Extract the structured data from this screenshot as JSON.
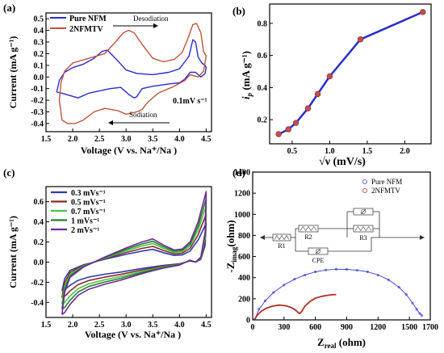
{
  "panels": {
    "a": {
      "letter": "(a)",
      "xlabel": "Voltage (V vs. Na⁺/Na )",
      "ylabel": "Current (mA g⁻¹)",
      "xlim": [
        1.5,
        4.6
      ],
      "ylim": [
        -0.47,
        0.55
      ],
      "xticks": [
        1.5,
        2.0,
        2.5,
        3.0,
        3.5,
        4.0,
        4.5
      ],
      "yticks": [
        -0.4,
        -0.3,
        -0.2,
        -0.1,
        0.0,
        0.1,
        0.2,
        0.3,
        0.4,
        0.5
      ],
      "annotations": {
        "desodiation": "Desodiation",
        "sodiation": "Sodiation",
        "rate": "0.1mV s⁻¹"
      },
      "series": [
        {
          "name": "Pure NFM",
          "color": "#2b2bd0",
          "points": [
            [
              1.7,
              -0.13
            ],
            [
              1.75,
              -0.03
            ],
            [
              1.85,
              0.04
            ],
            [
              2.0,
              0.08
            ],
            [
              2.2,
              0.11
            ],
            [
              2.4,
              0.16
            ],
            [
              2.55,
              0.22
            ],
            [
              2.65,
              0.23
            ],
            [
              2.8,
              0.16
            ],
            [
              3.0,
              0.06
            ],
            [
              3.2,
              0.03
            ],
            [
              3.5,
              0.02
            ],
            [
              3.8,
              0.04
            ],
            [
              4.0,
              0.07
            ],
            [
              4.1,
              0.13
            ],
            [
              4.18,
              0.18
            ],
            [
              4.25,
              0.32
            ],
            [
              4.3,
              0.3
            ],
            [
              4.35,
              0.17
            ],
            [
              4.42,
              0.12
            ],
            [
              4.48,
              0.1
            ],
            [
              4.5,
              0.08
            ],
            [
              4.48,
              0.03
            ],
            [
              4.4,
              0.0
            ],
            [
              4.3,
              0.04
            ],
            [
              4.2,
              0.04
            ],
            [
              4.1,
              -0.02
            ],
            [
              4.0,
              -0.05
            ],
            [
              3.8,
              -0.06
            ],
            [
              3.5,
              -0.08
            ],
            [
              3.3,
              -0.1
            ],
            [
              3.2,
              -0.17
            ],
            [
              3.15,
              -0.18
            ],
            [
              3.05,
              -0.15
            ],
            [
              2.9,
              -0.09
            ],
            [
              2.7,
              -0.1
            ],
            [
              2.5,
              -0.12
            ],
            [
              2.3,
              -0.14
            ],
            [
              2.1,
              -0.18
            ],
            [
              1.95,
              -0.16
            ],
            [
              1.8,
              -0.14
            ],
            [
              1.7,
              -0.13
            ]
          ]
        },
        {
          "name": "2NFMTV",
          "color": "#c0533a",
          "points": [
            [
              1.8,
              -0.37
            ],
            [
              1.75,
              -0.2
            ],
            [
              1.78,
              -0.05
            ],
            [
              1.85,
              0.05
            ],
            [
              2.0,
              0.12
            ],
            [
              2.3,
              0.16
            ],
            [
              2.6,
              0.2
            ],
            [
              2.8,
              0.3
            ],
            [
              2.95,
              0.38
            ],
            [
              3.05,
              0.4
            ],
            [
              3.15,
              0.38
            ],
            [
              3.3,
              0.28
            ],
            [
              3.5,
              0.16
            ],
            [
              3.7,
              0.13
            ],
            [
              3.9,
              0.15
            ],
            [
              4.05,
              0.21
            ],
            [
              4.15,
              0.32
            ],
            [
              4.25,
              0.45
            ],
            [
              4.32,
              0.46
            ],
            [
              4.4,
              0.38
            ],
            [
              4.45,
              0.22
            ],
            [
              4.5,
              0.18
            ],
            [
              4.45,
              0.05
            ],
            [
              4.35,
              0.0
            ],
            [
              4.2,
              0.02
            ],
            [
              4.1,
              -0.03
            ],
            [
              3.9,
              -0.08
            ],
            [
              3.6,
              -0.14
            ],
            [
              3.4,
              -0.22
            ],
            [
              3.3,
              -0.28
            ],
            [
              3.2,
              -0.3
            ],
            [
              3.0,
              -0.32
            ],
            [
              2.85,
              -0.29
            ],
            [
              2.6,
              -0.27
            ],
            [
              2.4,
              -0.3
            ],
            [
              2.2,
              -0.37
            ],
            [
              2.05,
              -0.4
            ],
            [
              1.9,
              -0.4
            ],
            [
              1.8,
              -0.37
            ]
          ]
        }
      ]
    },
    "b": {
      "letter": "(b)",
      "xlabel": "√ν  (mV/s)",
      "ylabel_main": "i",
      "ylabel_sub": "p",
      "ylabel_unit": " (mA g⁻¹)",
      "xlim": [
        0.2,
        2.35
      ],
      "ylim": [
        0.05,
        0.92
      ],
      "xticks": [
        0.5,
        1.0,
        1.5,
        2.0
      ],
      "yticks": [
        0.2,
        0.4,
        0.6,
        0.8
      ],
      "color": "#2b2bd0",
      "marker_color": "#c0504d",
      "x": [
        0.32,
        0.45,
        0.55,
        0.71,
        0.84,
        1.0,
        1.41,
        2.24
      ],
      "y": [
        0.11,
        0.14,
        0.18,
        0.27,
        0.36,
        0.47,
        0.7,
        0.87
      ]
    },
    "c": {
      "letter": "(c)",
      "xlabel": "Voltage (V vs. Na⁺/Na )",
      "ylabel": "Current (mA g⁻¹)",
      "xlim": [
        1.5,
        4.6
      ],
      "ylim": [
        -0.55,
        0.75
      ],
      "xticks": [
        1.5,
        2.0,
        2.5,
        3.0,
        3.5,
        4.0,
        4.5
      ],
      "yticks": [
        -0.4,
        -0.2,
        0.0,
        0.2,
        0.4,
        0.6
      ],
      "series": [
        {
          "name": "0.3 mVs⁻¹",
          "color": "#2e3aa8",
          "scale": 0.55
        },
        {
          "name": "0.5 mVs⁻¹",
          "color": "#8a2a2a",
          "scale": 0.68
        },
        {
          "name": "0.7 mVs⁻¹",
          "color": "#4cc24c",
          "scale": 0.8
        },
        {
          "name": "1 mVs⁻¹",
          "color": "#2a7d2a",
          "scale": 0.9
        },
        {
          "name": "2 mVs⁻¹",
          "color": "#6a2a9a",
          "scale": 1.0
        }
      ],
      "base_loop": [
        [
          1.8,
          -0.52
        ],
        [
          1.85,
          -0.3
        ],
        [
          1.95,
          -0.15
        ],
        [
          2.2,
          -0.05
        ],
        [
          2.6,
          0.05
        ],
        [
          3.0,
          0.14
        ],
        [
          3.3,
          0.2
        ],
        [
          3.5,
          0.23
        ],
        [
          3.7,
          0.17
        ],
        [
          3.9,
          0.12
        ],
        [
          4.05,
          0.13
        ],
        [
          4.2,
          0.2
        ],
        [
          4.35,
          0.4
        ],
        [
          4.45,
          0.6
        ],
        [
          4.5,
          0.7
        ],
        [
          4.48,
          0.3
        ],
        [
          4.4,
          0.05
        ],
        [
          4.3,
          0.0
        ],
        [
          4.2,
          0.02
        ],
        [
          4.0,
          -0.03
        ],
        [
          3.7,
          -0.06
        ],
        [
          3.4,
          -0.1
        ],
        [
          3.2,
          -0.13
        ],
        [
          2.9,
          -0.18
        ],
        [
          2.6,
          -0.22
        ],
        [
          2.3,
          -0.27
        ],
        [
          2.1,
          -0.33
        ],
        [
          1.95,
          -0.42
        ],
        [
          1.85,
          -0.5
        ],
        [
          1.8,
          -0.52
        ]
      ]
    },
    "d": {
      "letter": "(d)",
      "xlabel_main": "Z",
      "xlabel_sub": "real",
      "xlabel_unit": " (ohm)",
      "ylabel_main": "-Z",
      "ylabel_sub": "imag",
      "ylabel_unit": "(ohm)",
      "xlim": [
        0,
        1700
      ],
      "ylim": [
        0,
        1400
      ],
      "xticks": [
        0,
        300,
        600,
        900,
        1200,
        1500
      ],
      "xtick_labels": [
        "0",
        "300",
        "600",
        "900",
        "1200",
        "1500"
      ],
      "xtick_extra": "1700",
      "yticks": [
        0,
        200,
        400,
        600,
        800,
        1000,
        1200,
        1400
      ],
      "circuit_labels": [
        "R1",
        "R2",
        "R3",
        "CPE"
      ],
      "series": [
        {
          "name": "Pure NFM",
          "color": "#3b3bd8",
          "x": [
            20,
            60,
            120,
            200,
            300,
            400,
            500,
            600,
            700,
            800,
            900,
            1000,
            1100,
            1200,
            1300,
            1400,
            1470,
            1530,
            1570,
            1600,
            1620
          ],
          "y": [
            5,
            100,
            180,
            260,
            330,
            385,
            425,
            455,
            472,
            480,
            478,
            470,
            455,
            425,
            380,
            310,
            240,
            160,
            100,
            60,
            40
          ]
        },
        {
          "name": "2NFMTV",
          "color": "#b03020",
          "x": [
            20,
            40,
            80,
            130,
            190,
            250,
            310,
            360,
            400,
            430,
            450,
            470,
            500,
            550,
            600,
            650,
            700,
            760,
            800
          ],
          "y": [
            5,
            40,
            80,
            110,
            130,
            140,
            135,
            120,
            100,
            75,
            60,
            80,
            130,
            175,
            205,
            220,
            230,
            238,
            240
          ]
        }
      ]
    }
  }
}
